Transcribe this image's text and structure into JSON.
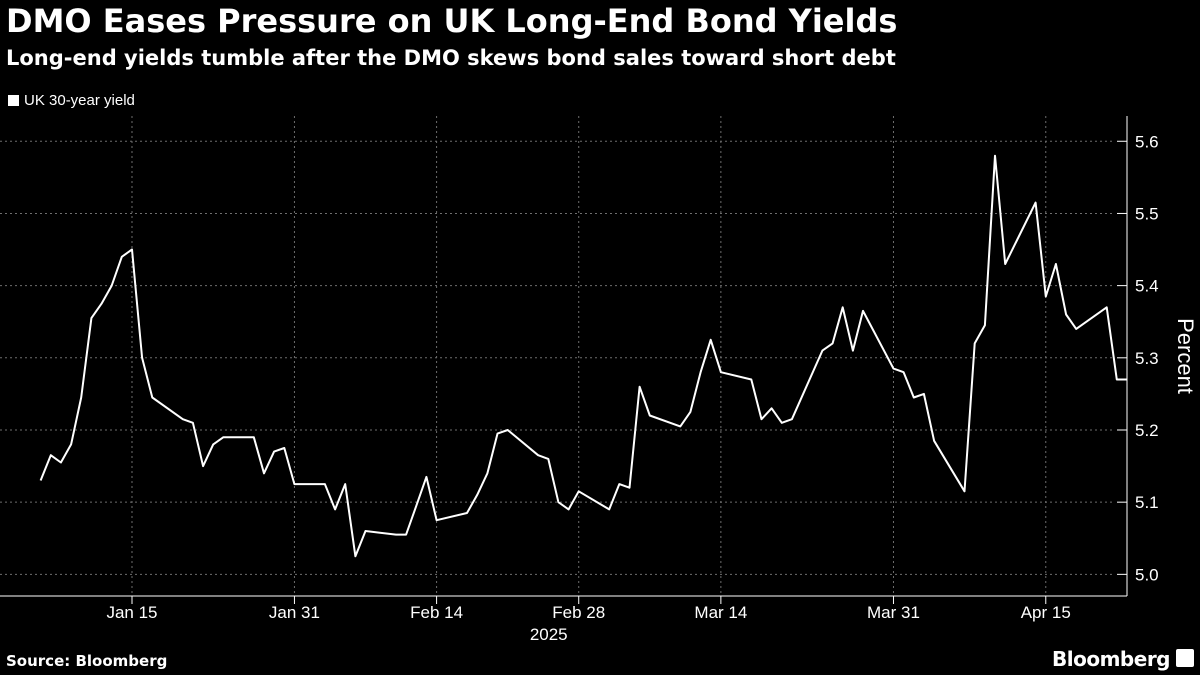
{
  "header": {
    "title": "DMO Eases Pressure on UK Long-End Bond Yields",
    "subtitle": "Long-end yields tumble after the DMO skews bond sales toward short debt"
  },
  "footer": {
    "source": "Source: Bloomberg",
    "brand": "Bloomberg",
    "brand_icon": "bloomberg-terminal-icon"
  },
  "colors": {
    "background": "#000000",
    "line": "#ffffff",
    "grid": "#6e6e6e"
  },
  "chart_data": {
    "type": "line",
    "series": [
      {
        "name": "UK 30-year yield",
        "x": [
          "2025-01-06",
          "2025-01-07",
          "2025-01-08",
          "2025-01-09",
          "2025-01-10",
          "2025-01-11",
          "2025-01-12",
          "2025-01-13",
          "2025-01-14",
          "2025-01-15",
          "2025-01-16",
          "2025-01-17",
          "2025-01-20",
          "2025-01-21",
          "2025-01-22",
          "2025-01-23",
          "2025-01-24",
          "2025-01-27",
          "2025-01-28",
          "2025-01-29",
          "2025-01-30",
          "2025-01-31",
          "2025-02-03",
          "2025-02-04",
          "2025-02-05",
          "2025-02-06",
          "2025-02-07",
          "2025-02-10",
          "2025-02-11",
          "2025-02-12",
          "2025-02-13",
          "2025-02-14",
          "2025-02-17",
          "2025-02-18",
          "2025-02-19",
          "2025-02-20",
          "2025-02-21",
          "2025-02-24",
          "2025-02-25",
          "2025-02-26",
          "2025-02-27",
          "2025-02-28",
          "2025-03-03",
          "2025-03-04",
          "2025-03-05",
          "2025-03-06",
          "2025-03-07",
          "2025-03-10",
          "2025-03-11",
          "2025-03-12",
          "2025-03-13",
          "2025-03-14",
          "2025-03-17",
          "2025-03-18",
          "2025-03-19",
          "2025-03-20",
          "2025-03-21",
          "2025-03-24",
          "2025-03-25",
          "2025-03-26",
          "2025-03-27",
          "2025-03-28",
          "2025-03-31",
          "2025-04-01",
          "2025-04-02",
          "2025-04-03",
          "2025-04-04",
          "2025-04-07",
          "2025-04-08",
          "2025-04-09",
          "2025-04-10",
          "2025-04-11",
          "2025-04-14",
          "2025-04-15",
          "2025-04-16",
          "2025-04-17",
          "2025-04-18",
          "2025-04-21",
          "2025-04-22",
          "2025-04-23"
        ],
        "values": [
          5.13,
          5.165,
          5.155,
          5.18,
          5.245,
          5.355,
          5.375,
          5.4,
          5.44,
          5.45,
          5.3,
          5.245,
          5.215,
          5.21,
          5.15,
          5.18,
          5.19,
          5.19,
          5.14,
          5.17,
          5.175,
          5.125,
          5.125,
          5.09,
          5.125,
          5.025,
          5.06,
          5.055,
          5.055,
          5.095,
          5.135,
          5.075,
          5.085,
          5.11,
          5.14,
          5.195,
          5.2,
          5.165,
          5.16,
          5.1,
          5.09,
          5.115,
          5.09,
          5.125,
          5.12,
          5.26,
          5.22,
          5.205,
          5.225,
          5.28,
          5.325,
          5.28,
          5.27,
          5.215,
          5.23,
          5.21,
          5.215,
          5.31,
          5.32,
          5.37,
          5.31,
          5.365,
          5.285,
          5.28,
          5.245,
          5.25,
          5.185,
          5.115,
          5.32,
          5.345,
          5.58,
          5.43,
          5.515,
          5.385,
          5.43,
          5.36,
          5.34,
          5.37,
          5.27,
          5.27
        ]
      }
    ],
    "x_ticks": [
      {
        "date": "2025-01-15",
        "label": "Jan 15"
      },
      {
        "date": "2025-01-31",
        "label": "Jan 31"
      },
      {
        "date": "2025-02-14",
        "label": "Feb 14"
      },
      {
        "date": "2025-02-28",
        "label": "Feb 28"
      },
      {
        "date": "2025-03-14",
        "label": "Mar 14"
      },
      {
        "date": "2025-03-31",
        "label": "Mar 31"
      },
      {
        "date": "2025-04-15",
        "label": "Apr 15"
      }
    ],
    "year_label": "2025",
    "xlim": [
      "2025-01-02",
      "2025-04-23"
    ],
    "ylim": [
      4.97,
      5.635
    ],
    "y_ticks": [
      5.0,
      5.1,
      5.2,
      5.3,
      5.4,
      5.5,
      5.6
    ],
    "ylabel": "Percent",
    "y_axis_position": "right",
    "grid": true,
    "legend_position": "top-left"
  }
}
